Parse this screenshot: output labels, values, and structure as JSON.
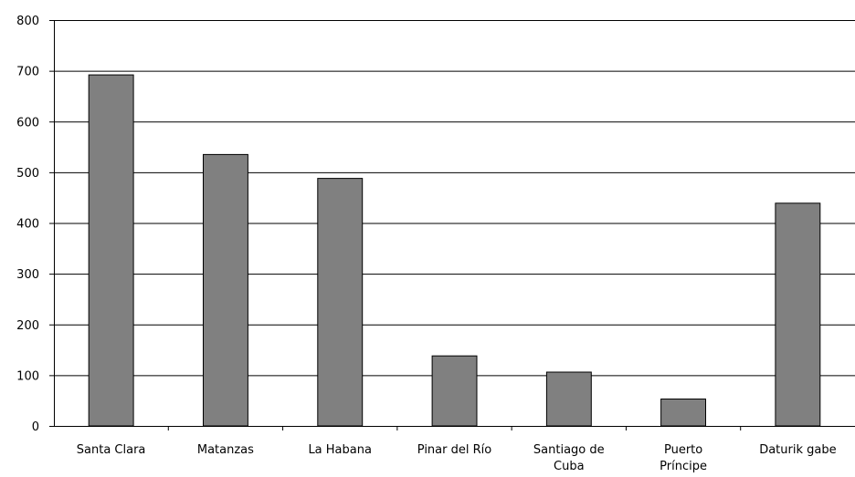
{
  "chart_data": {
    "type": "bar",
    "title": "",
    "xlabel": "",
    "ylabel": "",
    "categories": [
      [
        "Santa Clara"
      ],
      [
        "Matanzas"
      ],
      [
        "La Habana"
      ],
      [
        "Pinar del Río"
      ],
      [
        "Santiago de",
        "Cuba"
      ],
      [
        "Puerto",
        "Príncipe"
      ],
      [
        "Daturik gabe"
      ]
    ],
    "values": [
      692,
      535,
      488,
      138,
      106,
      53,
      439
    ],
    "ylim": [
      0,
      800
    ],
    "yticks": [
      0,
      100,
      200,
      300,
      400,
      500,
      600,
      700,
      800
    ],
    "grid": true,
    "legend": "none",
    "colors": {
      "bar_fill": "#808080",
      "bar_stroke": "#000000",
      "grid": "#000000",
      "axis": "#000000",
      "background": "#ffffff"
    }
  }
}
